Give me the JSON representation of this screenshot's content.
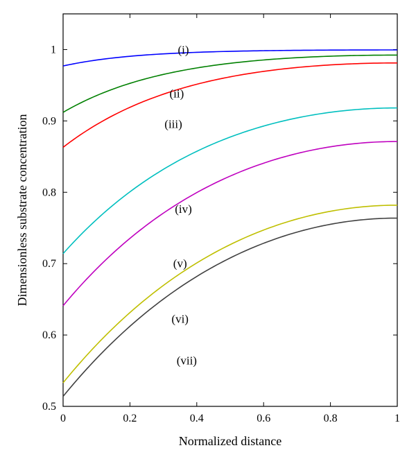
{
  "chart_data": {
    "type": "line",
    "title": "",
    "xlabel": "Normalized distance",
    "ylabel": "Dimensionless substrate concentration",
    "xlim": [
      0,
      1.0
    ],
    "ylim": [
      0.5,
      1.05
    ],
    "grid": false,
    "legend": "none",
    "x_ticks": [
      "0",
      "0.2",
      "0.4",
      "0.6",
      "0.8",
      "1"
    ],
    "y_ticks": [
      "0.5",
      "0.6",
      "0.7",
      "0.8",
      "0.9",
      "1"
    ],
    "series": [
      {
        "name": "(i)",
        "color": "#0000ff",
        "y0": 0.977
      },
      {
        "name": "(ii)",
        "color": "#008000",
        "y0": 0.912
      },
      {
        "name": "(iii)",
        "color": "#ff0000",
        "y0": 0.863
      },
      {
        "name": "(iv)",
        "color": "#00bfbf",
        "y0": 0.714
      },
      {
        "name": "(v)",
        "color": "#bf00bf",
        "y0": 0.641
      },
      {
        "name": "(vi)",
        "color": "#bfbf00",
        "y0": 0.533
      },
      {
        "name": "(vii)",
        "color": "#404040",
        "y0": 0.514
      }
    ]
  }
}
